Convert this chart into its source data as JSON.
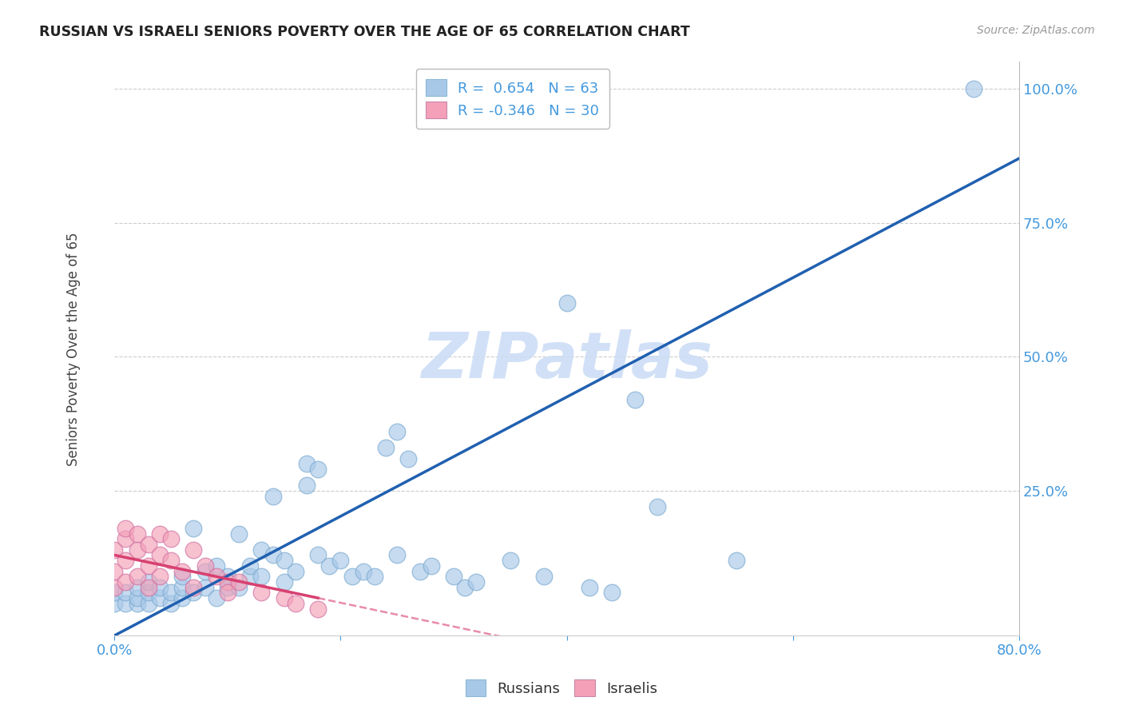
{
  "title": "RUSSIAN VS ISRAELI SENIORS POVERTY OVER THE AGE OF 65 CORRELATION CHART",
  "source": "Source: ZipAtlas.com",
  "ylabel": "Seniors Poverty Over the Age of 65",
  "xlim": [
    0.0,
    0.8
  ],
  "ylim": [
    -0.02,
    1.05
  ],
  "r_russian": 0.654,
  "n_russian": 63,
  "r_israeli": -0.346,
  "n_israeli": 30,
  "russian_color": "#a8c8e8",
  "israeli_color": "#f4a0b8",
  "russian_line_color": "#2060b0",
  "israeli_line_color": "#d84070",
  "watermark": "ZIPatlas",
  "watermark_color": "#ccddf5",
  "russians_scatter": [
    [
      0.0,
      0.04
    ],
    [
      0.0,
      0.06
    ],
    [
      0.01,
      0.04
    ],
    [
      0.01,
      0.06
    ],
    [
      0.02,
      0.04
    ],
    [
      0.02,
      0.05
    ],
    [
      0.02,
      0.07
    ],
    [
      0.03,
      0.04
    ],
    [
      0.03,
      0.06
    ],
    [
      0.03,
      0.08
    ],
    [
      0.04,
      0.05
    ],
    [
      0.04,
      0.07
    ],
    [
      0.05,
      0.04
    ],
    [
      0.05,
      0.06
    ],
    [
      0.06,
      0.05
    ],
    [
      0.06,
      0.07
    ],
    [
      0.06,
      0.09
    ],
    [
      0.07,
      0.06
    ],
    [
      0.07,
      0.18
    ],
    [
      0.08,
      0.07
    ],
    [
      0.08,
      0.1
    ],
    [
      0.09,
      0.05
    ],
    [
      0.09,
      0.11
    ],
    [
      0.1,
      0.07
    ],
    [
      0.1,
      0.09
    ],
    [
      0.11,
      0.07
    ],
    [
      0.11,
      0.17
    ],
    [
      0.12,
      0.09
    ],
    [
      0.12,
      0.11
    ],
    [
      0.13,
      0.09
    ],
    [
      0.13,
      0.14
    ],
    [
      0.14,
      0.13
    ],
    [
      0.14,
      0.24
    ],
    [
      0.15,
      0.08
    ],
    [
      0.15,
      0.12
    ],
    [
      0.16,
      0.1
    ],
    [
      0.17,
      0.26
    ],
    [
      0.17,
      0.3
    ],
    [
      0.18,
      0.13
    ],
    [
      0.18,
      0.29
    ],
    [
      0.19,
      0.11
    ],
    [
      0.2,
      0.12
    ],
    [
      0.21,
      0.09
    ],
    [
      0.22,
      0.1
    ],
    [
      0.23,
      0.09
    ],
    [
      0.24,
      0.33
    ],
    [
      0.25,
      0.13
    ],
    [
      0.25,
      0.36
    ],
    [
      0.26,
      0.31
    ],
    [
      0.27,
      0.1
    ],
    [
      0.28,
      0.11
    ],
    [
      0.3,
      0.09
    ],
    [
      0.31,
      0.07
    ],
    [
      0.32,
      0.08
    ],
    [
      0.35,
      0.12
    ],
    [
      0.38,
      0.09
    ],
    [
      0.4,
      0.6
    ],
    [
      0.42,
      0.07
    ],
    [
      0.44,
      0.06
    ],
    [
      0.46,
      0.42
    ],
    [
      0.48,
      0.22
    ],
    [
      0.55,
      0.12
    ],
    [
      0.76,
      1.0
    ]
  ],
  "israelis_scatter": [
    [
      0.0,
      0.07
    ],
    [
      0.0,
      0.1
    ],
    [
      0.0,
      0.14
    ],
    [
      0.01,
      0.08
    ],
    [
      0.01,
      0.12
    ],
    [
      0.01,
      0.16
    ],
    [
      0.01,
      0.18
    ],
    [
      0.02,
      0.09
    ],
    [
      0.02,
      0.14
    ],
    [
      0.02,
      0.17
    ],
    [
      0.03,
      0.11
    ],
    [
      0.03,
      0.15
    ],
    [
      0.03,
      0.07
    ],
    [
      0.04,
      0.13
    ],
    [
      0.04,
      0.17
    ],
    [
      0.04,
      0.09
    ],
    [
      0.05,
      0.12
    ],
    [
      0.05,
      0.16
    ],
    [
      0.06,
      0.1
    ],
    [
      0.07,
      0.14
    ],
    [
      0.07,
      0.07
    ],
    [
      0.08,
      0.11
    ],
    [
      0.09,
      0.09
    ],
    [
      0.1,
      0.08
    ],
    [
      0.1,
      0.06
    ],
    [
      0.11,
      0.08
    ],
    [
      0.13,
      0.06
    ],
    [
      0.15,
      0.05
    ],
    [
      0.16,
      0.04
    ],
    [
      0.18,
      0.03
    ]
  ],
  "russian_line": [
    0.0,
    0.8,
    -0.02,
    0.87
  ],
  "israeli_line_solid": [
    0.0,
    0.18,
    0.13,
    0.05
  ],
  "israeli_line_dash": [
    0.18,
    0.8,
    0.05,
    -0.11
  ]
}
